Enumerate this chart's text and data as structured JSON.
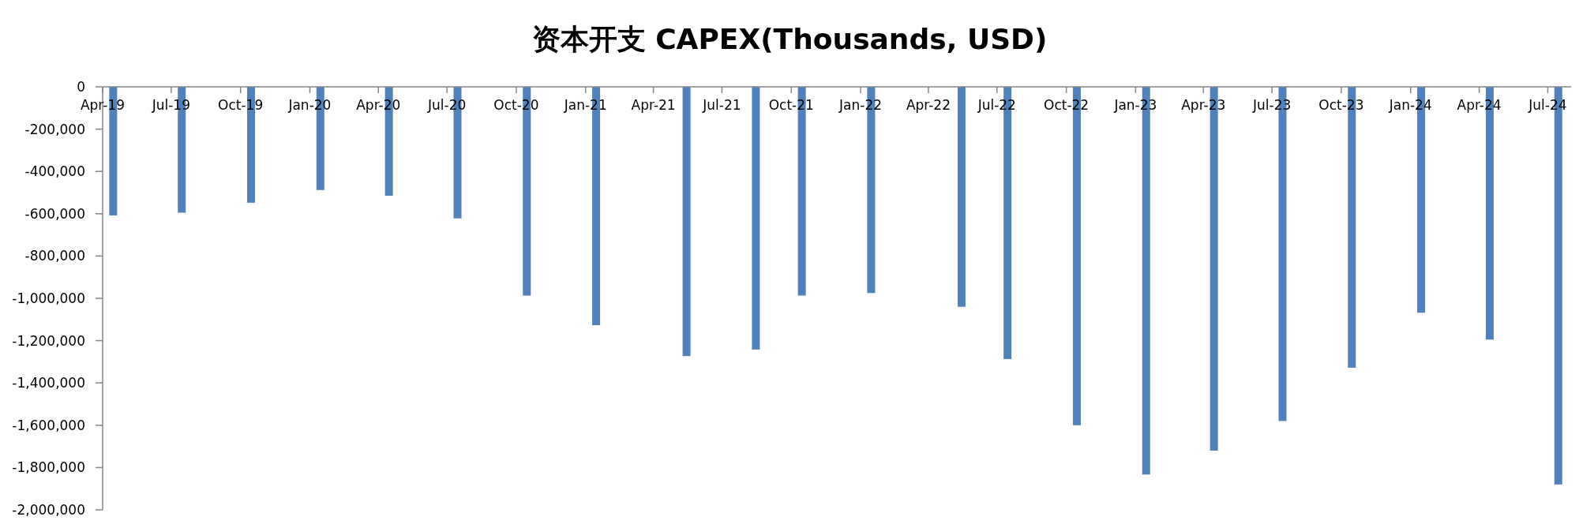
{
  "chart_data": {
    "type": "bar",
    "title": "资本开支 CAPEX(Thousands, USD)",
    "x": [
      "2019-04-15",
      "2019-07-15",
      "2019-10-15",
      "2020-01-15",
      "2020-04-15",
      "2020-07-15",
      "2020-10-15",
      "2021-01-15",
      "2021-05-15",
      "2021-08-15",
      "2021-10-15",
      "2022-01-15",
      "2022-05-15",
      "2022-07-15",
      "2022-10-15",
      "2023-01-15",
      "2023-04-15",
      "2023-07-15",
      "2023-10-15",
      "2024-01-15",
      "2024-04-15",
      "2024-07-15"
    ],
    "values": [
      -608000,
      -595000,
      -548000,
      -488000,
      -515000,
      -622000,
      -987000,
      -1127000,
      -1273000,
      -1242000,
      -987000,
      -975000,
      -1040000,
      -1287000,
      -1600000,
      -1833000,
      -1720000,
      -1580000,
      -1328000,
      -1068000,
      -1195000,
      -1880000
    ],
    "color": "#4f81bd",
    "xlim": [
      "2019-04-01",
      "2024-08-01"
    ],
    "xticks": [
      {
        "value": "2019-04-01",
        "label": "Apr-19"
      },
      {
        "value": "2019-07-01",
        "label": "Jul-19"
      },
      {
        "value": "2019-10-01",
        "label": "Oct-19"
      },
      {
        "value": "2020-01-01",
        "label": "Jan-20"
      },
      {
        "value": "2020-04-01",
        "label": "Apr-20"
      },
      {
        "value": "2020-07-01",
        "label": "Jul-20"
      },
      {
        "value": "2020-10-01",
        "label": "Oct-20"
      },
      {
        "value": "2021-01-01",
        "label": "Jan-21"
      },
      {
        "value": "2021-04-01",
        "label": "Apr-21"
      },
      {
        "value": "2021-07-01",
        "label": "Jul-21"
      },
      {
        "value": "2021-10-01",
        "label": "Oct-21"
      },
      {
        "value": "2022-01-01",
        "label": "Jan-22"
      },
      {
        "value": "2022-04-01",
        "label": "Apr-22"
      },
      {
        "value": "2022-07-01",
        "label": "Jul-22"
      },
      {
        "value": "2022-10-01",
        "label": "Oct-22"
      },
      {
        "value": "2023-01-01",
        "label": "Jan-23"
      },
      {
        "value": "2023-04-01",
        "label": "Apr-23"
      },
      {
        "value": "2023-07-01",
        "label": "Jul-23"
      },
      {
        "value": "2023-10-01",
        "label": "Oct-23"
      },
      {
        "value": "2024-01-01",
        "label": "Jan-24"
      },
      {
        "value": "2024-04-01",
        "label": "Apr-24"
      },
      {
        "value": "2024-07-01",
        "label": "Jul-24"
      }
    ],
    "ylim": [
      -2000000,
      0
    ],
    "yticks": [
      0,
      {
        "value": -200000,
        "label": "-200,000"
      },
      {
        "value": -400000,
        "label": "-400,000"
      },
      {
        "value": -600000,
        "label": "-600,000"
      },
      {
        "value": -800000,
        "label": "-800,000"
      },
      {
        "value": -1000000,
        "label": "-1,000,000"
      },
      {
        "value": -1200000,
        "label": "-1,200,000"
      },
      {
        "value": -1400000,
        "label": "-1,400,000"
      },
      {
        "value": -1600000,
        "label": "-1,600,000"
      },
      {
        "value": -1800000,
        "label": "-1,800,000"
      },
      {
        "value": -2000000,
        "label": "-2,000,000"
      }
    ]
  }
}
